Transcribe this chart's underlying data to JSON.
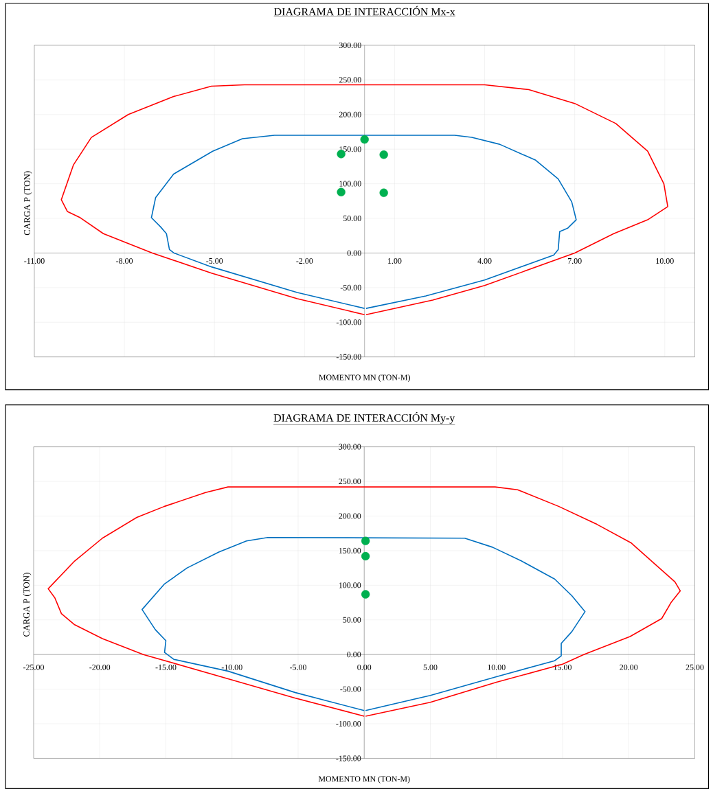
{
  "chart_data": [
    {
      "type": "line",
      "title": "DIAGRAMA DE INTERACCIÓN Mx-x",
      "xlabel": "MOMENTO MN (TON-M)",
      "ylabel": "CARGA P (TON)",
      "grid": true,
      "xlim": [
        -11,
        11
      ],
      "ylim": [
        -150,
        300
      ],
      "xticks": [
        {
          "value": -11,
          "label": "-11.00"
        },
        {
          "value": -8,
          "label": "-8.00"
        },
        {
          "value": -5,
          "label": "-5.00"
        },
        {
          "value": -2,
          "label": "-2.00"
        },
        {
          "value": 1,
          "label": "1.00"
        },
        {
          "value": 4,
          "label": "4.00"
        },
        {
          "value": 7,
          "label": "7.00"
        },
        {
          "value": 10,
          "label": "10.00"
        }
      ],
      "yticks": [
        {
          "value": -150,
          "label": "-150.00"
        },
        {
          "value": -100,
          "label": "-100.00"
        },
        {
          "value": -50,
          "label": "-50.00"
        },
        {
          "value": 0,
          "label": "0.00"
        },
        {
          "value": 50,
          "label": "50.00"
        },
        {
          "value": 100,
          "label": "100.00"
        },
        {
          "value": 150,
          "label": "150.00"
        },
        {
          "value": 200,
          "label": "200.00"
        },
        {
          "value": 250,
          "label": "250.00"
        },
        {
          "value": 300,
          "label": "300.00"
        }
      ],
      "series": [
        {
          "type": "line",
          "color": "#ff0000",
          "x": [
            0,
            -2.24,
            -5.1,
            -7.07,
            -8.7,
            -9.47,
            -9.9,
            -10.1,
            -9.7,
            -9.1,
            -7.87,
            -6.36,
            -5.1,
            -4,
            4,
            5.47,
            7.0,
            8.37,
            9.43,
            9.97,
            10.1,
            9.43,
            8.3,
            7.0,
            4.0,
            2.27,
            0.05
          ],
          "values": [
            -89,
            -66,
            -29,
            0,
            28,
            51,
            60,
            77,
            127,
            167,
            200,
            226,
            241,
            243,
            243,
            236,
            216,
            187,
            147,
            100,
            67,
            48,
            28,
            0,
            -47,
            -68,
            -89
          ]
        },
        {
          "type": "line",
          "color": "#0070c0",
          "x": [
            0,
            -2.24,
            -5.1,
            -6.35,
            -6.5,
            -6.6,
            -6.8,
            -7.1,
            -6.96,
            -6.36,
            -5.06,
            -4.07,
            -3,
            3,
            3.57,
            4.5,
            5.7,
            6.45,
            6.9,
            7.05,
            6.77,
            6.5,
            6.45,
            6.3,
            4.0,
            2.04,
            0.05
          ],
          "values": [
            -80,
            -57,
            -20,
            0,
            5,
            28,
            38,
            51,
            80,
            114,
            147,
            165,
            170,
            170,
            167,
            157,
            134,
            107,
            74,
            48,
            36,
            31,
            5,
            -3,
            -39,
            -62,
            -80
          ]
        },
        {
          "type": "scatter",
          "marker": "circle",
          "color": "#00b050",
          "x": [
            -0.78,
            -0.78,
            0,
            0.64,
            0.64
          ],
          "values": [
            143,
            88,
            164,
            142,
            87
          ]
        }
      ]
    },
    {
      "type": "line",
      "title": "DIAGRAMA DE INTERACCIÓN My-y",
      "xlabel": "MOMENTO MN (TON-M)",
      "ylabel": "CARGA P (TON)",
      "grid": true,
      "xlim": [
        -25,
        25
      ],
      "ylim": [
        -150,
        300
      ],
      "xticks": [
        {
          "value": -25,
          "label": "-25.00"
        },
        {
          "value": -20,
          "label": "-20.00"
        },
        {
          "value": -15,
          "label": "-15.00"
        },
        {
          "value": -10,
          "label": "-10.00"
        },
        {
          "value": -5,
          "label": "-5.00"
        },
        {
          "value": 0,
          "label": "0.00"
        },
        {
          "value": 5,
          "label": "5.00"
        },
        {
          "value": 10,
          "label": "10.00"
        },
        {
          "value": 15,
          "label": "15.00"
        },
        {
          "value": 20,
          "label": "20.00"
        },
        {
          "value": 25,
          "label": "25.00"
        }
      ],
      "yticks": [
        {
          "value": -150,
          "label": "-150.00"
        },
        {
          "value": -100,
          "label": "-100.00"
        },
        {
          "value": -50,
          "label": "-50.00"
        },
        {
          "value": 0,
          "label": "0.00"
        },
        {
          "value": 50,
          "label": "50.00"
        },
        {
          "value": 100,
          "label": "100.00"
        },
        {
          "value": 150,
          "label": "150.00"
        },
        {
          "value": 200,
          "label": "200.00"
        },
        {
          "value": 250,
          "label": "250.00"
        },
        {
          "value": 300,
          "label": "300.00"
        }
      ],
      "series": [
        {
          "type": "line",
          "color": "#ff0000",
          "x": [
            0,
            -5.2,
            -10.3,
            -16.7,
            -19.8,
            -21.9,
            -22.9,
            -23.4,
            -23.9,
            -21.9,
            -19.8,
            -17.2,
            -15.1,
            -12,
            -10.3,
            9.9,
            11.6,
            14.7,
            17.6,
            20.2,
            23.5,
            23.9,
            23.2,
            22.5,
            20.1,
            16.6,
            15,
            10,
            5,
            0.1
          ],
          "values": [
            -89,
            -63,
            -35,
            0,
            23,
            43,
            59,
            82,
            95,
            135,
            168,
            198,
            214,
            234,
            242,
            242,
            238,
            214,
            188,
            161,
            105,
            92,
            75,
            52,
            26,
            0,
            -14,
            -40,
            -69,
            -89
          ]
        },
        {
          "type": "line",
          "color": "#0070c0",
          "x": [
            0,
            -5.2,
            -10.3,
            -14.4,
            -15.1,
            -15,
            -15.8,
            -16.8,
            -15.1,
            -13.4,
            -11,
            -8.9,
            -7.3,
            7.6,
            9.7,
            11.9,
            14.4,
            15.7,
            16.7,
            15.7,
            14.9,
            14.9,
            14.4,
            10,
            5,
            0.1
          ],
          "values": [
            -81,
            -55,
            -24,
            -7,
            3,
            20,
            36,
            65,
            102,
            125,
            148,
            164,
            169,
            168,
            155,
            135,
            109,
            85,
            62,
            33,
            16,
            -2,
            -9,
            -32,
            -59,
            -81
          ]
        },
        {
          "type": "scatter",
          "marker": "circle",
          "color": "#00b050",
          "x": [
            0.1,
            0.1,
            0.1
          ],
          "values": [
            164,
            142,
            87
          ]
        }
      ]
    }
  ]
}
